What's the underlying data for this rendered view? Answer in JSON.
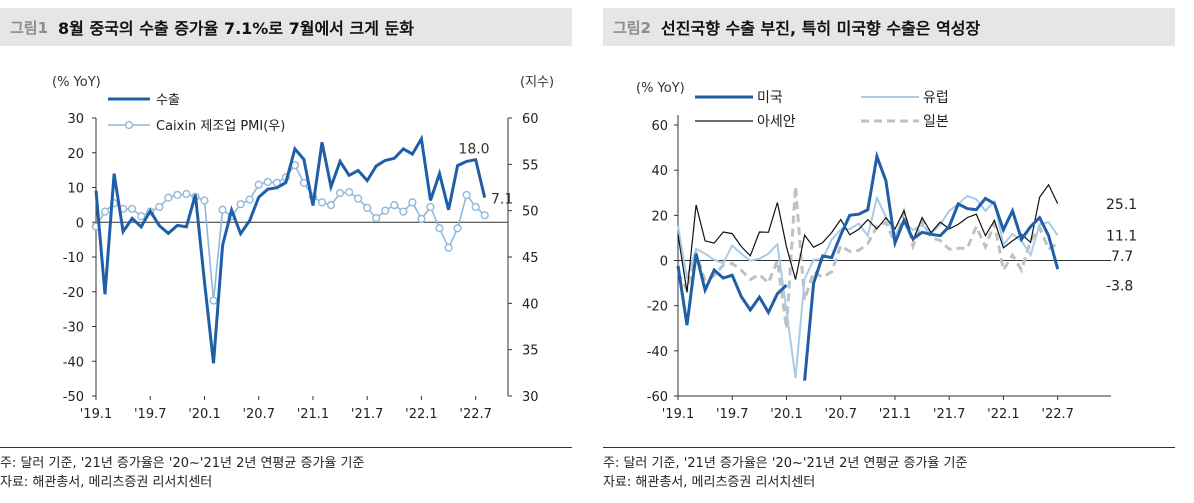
{
  "left": {
    "fig_label": "그림1",
    "title": "8월 중국의 수출 증가율 7.1%로 7월에서 크게 둔화",
    "note": "주: 달러 기준, '21년 증가율은 '20~'21년 2년 연평균 증가율 기준",
    "source": "자료: 해관총서, 메리츠증권 리서치센터"
  },
  "right": {
    "fig_label": "그림2",
    "title": "선진국향 수출 부진, 특히 미국향 수출은 역성장",
    "note": "주: 달러 기준, '21년 증가율은 '20~'21년 2년 연평균 증가율 기준",
    "source": "자료: 해관총서, 메리츠증권 리서치센터"
  },
  "chart_data": [
    {
      "type": "line",
      "title": "8월 중국의 수출 증가율 7.1%로 7월에서 크게 둔화",
      "ylabel": "(% YoY)",
      "y2label": "(지수)",
      "ylim": [
        -50,
        30
      ],
      "y2lim": [
        30,
        60
      ],
      "yticks": [
        30,
        20,
        10,
        0,
        -10,
        -20,
        -30,
        -40,
        -50
      ],
      "y2ticks": [
        60,
        55,
        50,
        45,
        40,
        35,
        30
      ],
      "xticks": [
        "'19.1",
        "'19.7",
        "'20.1",
        "'20.7",
        "'21.1",
        "'21.7",
        "'22.1",
        "'22.7"
      ],
      "x_start": "2019-01",
      "legend_position": "top-left",
      "colors": {
        "export": "#1f5fa8",
        "pmi": "#8fb8dc"
      },
      "series": [
        {
          "name": "수출",
          "axis": "left",
          "values": [
            9.1,
            -20.7,
            14.0,
            -2.7,
            1.1,
            -1.3,
            3.3,
            -1.0,
            -3.2,
            -0.9,
            -1.3,
            7.9,
            -17.2,
            -40.6,
            -6.6,
            3.5,
            -3.3,
            0.5,
            7.2,
            9.5,
            9.9,
            11.4,
            21.1,
            18.1,
            4.8,
            23.0,
            10.2,
            17.5,
            13.5,
            14.9,
            12.0,
            16.2,
            17.8,
            18.4,
            21.1,
            19.6,
            24.0,
            6.3,
            14.0,
            3.6,
            16.3,
            17.5,
            18.0,
            7.1
          ]
        },
        {
          "name": "Caixin 제조업 PMI(우)",
          "axis": "right",
          "values": [
            48.3,
            49.9,
            50.8,
            50.2,
            50.2,
            49.4,
            49.9,
            50.4,
            51.4,
            51.7,
            51.8,
            51.5,
            51.1,
            40.3,
            50.1,
            49.4,
            50.7,
            51.2,
            52.8,
            53.1,
            53.0,
            53.6,
            54.9,
            53.0,
            51.5,
            50.9,
            50.6,
            51.9,
            52.0,
            51.3,
            50.3,
            49.2,
            50.0,
            50.6,
            49.9,
            50.9,
            49.1,
            50.4,
            48.1,
            46.0,
            48.1,
            51.7,
            50.4,
            49.5
          ]
        }
      ],
      "annotations": [
        "18.0",
        "7.1"
      ]
    },
    {
      "type": "line",
      "title": "선진국향 수출 부진, 특히 미국향 수출은 역성장",
      "ylabel": "(% YoY)",
      "ylim": [
        -60,
        60
      ],
      "yticks": [
        60,
        40,
        20,
        0,
        -20,
        -40,
        -60
      ],
      "xticks": [
        "'19.1",
        "'19.7",
        "'20.1",
        "'20.7",
        "'21.1",
        "'21.7",
        "'22.1",
        "'22.7"
      ],
      "x_start": "2019-01",
      "legend_position": "top-left",
      "colors": {
        "us": "#1f5fa8",
        "eu": "#a9cbe8",
        "asean": "#111111",
        "japan": "#c0c0c0"
      },
      "series": [
        {
          "name": "미국",
          "values": [
            -2.4,
            -28.6,
            3.0,
            -13.1,
            -4.2,
            -7.8,
            -6.5,
            -16.0,
            -21.9,
            -16.2,
            -23.0,
            -14.7,
            -10.9,
            null,
            -53.2,
            -10.0,
            2.0,
            1.3,
            11.3,
            20.0,
            20.5,
            22.5,
            46.1,
            35.3,
            7.8,
            17.8,
            9.5,
            12.5,
            11.6,
            11.0,
            15.0,
            25.0,
            23.0,
            22.5,
            27.5,
            25.2,
            13.6,
            22.0,
            9.4,
            15.0,
            19.0,
            11.0,
            -3.8
          ]
        },
        {
          "name": "유럽",
          "values": [
            15.4,
            -8.0,
            5.2,
            3.0,
            0.3,
            -1.2,
            6.6,
            3.0,
            -0.1,
            0.8,
            3.0,
            7.2,
            -22.0,
            -52.1,
            -8.2,
            0.3,
            0.7,
            9.2,
            13.7,
            13.9,
            16.4,
            10.9,
            27.7,
            19.3,
            11.3,
            16.9,
            13.5,
            15.7,
            11.9,
            16.0,
            22.0,
            25.0,
            28.6,
            27.1,
            22.0,
            26.3,
            7.0,
            11.7,
            8.7,
            2.4,
            16.0,
            17.0,
            11.1
          ]
        },
        {
          "name": "아세안",
          "values": [
            11.5,
            -14.0,
            24.6,
            8.7,
            7.7,
            12.6,
            11.9,
            6.2,
            2.1,
            12.6,
            12.5,
            25.7,
            6.0,
            -8.4,
            11.2,
            5.9,
            7.9,
            12.4,
            18.1,
            11.4,
            13.8,
            18.1,
            14.0,
            18.9,
            14.0,
            22.0,
            8.9,
            19.0,
            12.3,
            17.0,
            14.0,
            16.0,
            19.0,
            20.5,
            11.0,
            17.7,
            5.6,
            8.7,
            11.6,
            8.0,
            28.0,
            33.5,
            25.1
          ]
        },
        {
          "name": "일본",
          "values": [
            -5.2,
            -13.0,
            3.1,
            -9.0,
            -6.7,
            -2.1,
            -1.3,
            -4.3,
            -8.4,
            -6.2,
            -9.9,
            0.0,
            -30.0,
            32.8,
            -17.5,
            -5.0,
            -7.4,
            -5.0,
            6.6,
            4.0,
            4.5,
            7.5,
            15.1,
            16.8,
            7.8,
            21.6,
            6.4,
            17.5,
            10.2,
            8.8,
            5.0,
            5.4,
            5.4,
            15.0,
            6.0,
            16.4,
            -4.2,
            2.4,
            -4.2,
            8.7,
            14.6,
            5.0,
            7.7
          ]
        }
      ],
      "annotations": [
        "25.1",
        "11.1",
        "7.7",
        "-3.8"
      ]
    }
  ]
}
